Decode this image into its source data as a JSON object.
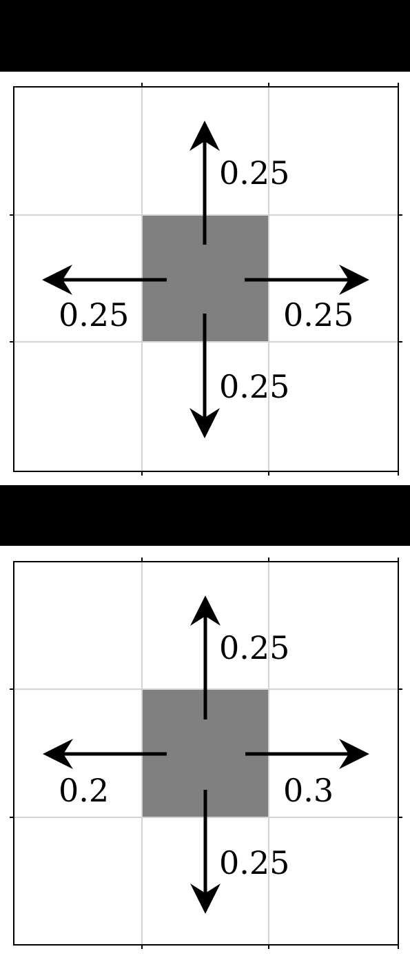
{
  "panels": [
    {
      "probabilities": {
        "up": "0.25",
        "left": "0.25",
        "right": "0.25",
        "down": "0.25"
      }
    },
    {
      "probabilities": {
        "up": "0.25",
        "left": "0.2",
        "right": "0.3",
        "down": "0.25"
      }
    }
  ],
  "colors": {
    "banner": "#000000",
    "center_cell": "#808080",
    "grid_line": "#d3d3d3",
    "frame": "#000000",
    "arrow": "#000000",
    "background": "#ffffff"
  }
}
